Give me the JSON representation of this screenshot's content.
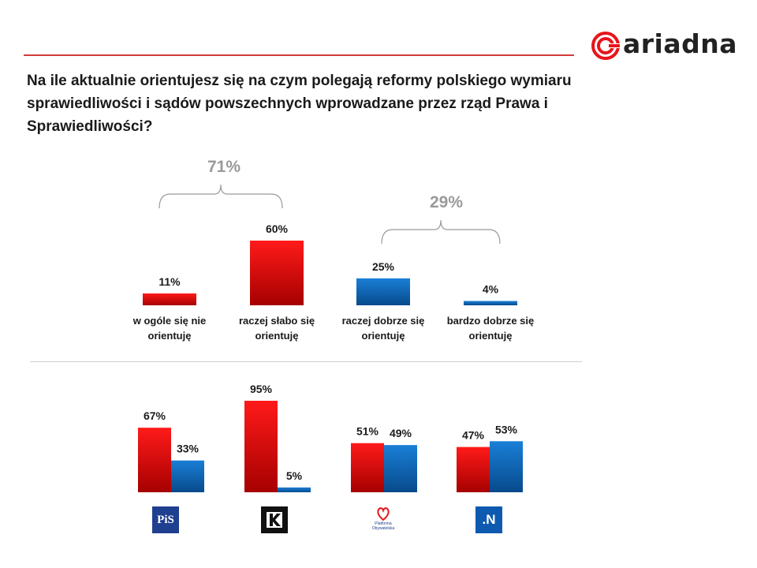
{
  "title": "Na ile aktualnie orientujesz się na czym polegają reformy polskiego wymiaru sprawiedliwości i sądów powszechnych wprowadzane przez rząd Prawa i Sprawiedliwości?",
  "brand": "ariadna",
  "colors": {
    "red": "#e8141b",
    "blue": "#0f6cc0",
    "accent_rule": "#d23b3b"
  },
  "groups": [
    {
      "label": "71%",
      "spans": [
        "w ogóle się nie orientuję",
        "raczej słabo się orientuję"
      ]
    },
    {
      "label": "29%",
      "spans": [
        "raczej dobrze się orientuję",
        "bardzo dobrze się orientuję"
      ]
    }
  ],
  "parties": [
    {
      "name": "pis-logo",
      "text": "PiS"
    },
    {
      "name": "kukiz-logo",
      "text": ""
    },
    {
      "name": "po-logo",
      "text": "Platforma Obywatelska"
    },
    {
      "name": "nowoczesna-logo",
      "text": ".N"
    }
  ],
  "chart_data": [
    {
      "type": "bar",
      "categories": [
        "w ogóle się nie orientuję",
        "raczej słabo się orientuję",
        "raczej dobrze się orientuję",
        "bardzo dobrze się orientuję"
      ],
      "values": [
        11,
        60,
        25,
        4
      ],
      "value_labels": [
        "11%",
        "60%",
        "25%",
        "4%"
      ],
      "colors": [
        "red",
        "red",
        "blue",
        "blue"
      ],
      "ylim": [
        0,
        100
      ]
    },
    {
      "type": "bar",
      "categories": [
        "PiS",
        "Kukiz'15",
        "Platforma Obywatelska",
        ".N"
      ],
      "series": [
        {
          "values": [
            67,
            95,
            51,
            47
          ],
          "value_labels": [
            "67%",
            "95%",
            "51%",
            "47%"
          ],
          "color": "red"
        },
        {
          "values": [
            33,
            5,
            49,
            53
          ],
          "value_labels": [
            "33%",
            "5%",
            "49%",
            "53%"
          ],
          "color": "blue"
        }
      ],
      "ylim": [
        0,
        100
      ]
    }
  ]
}
